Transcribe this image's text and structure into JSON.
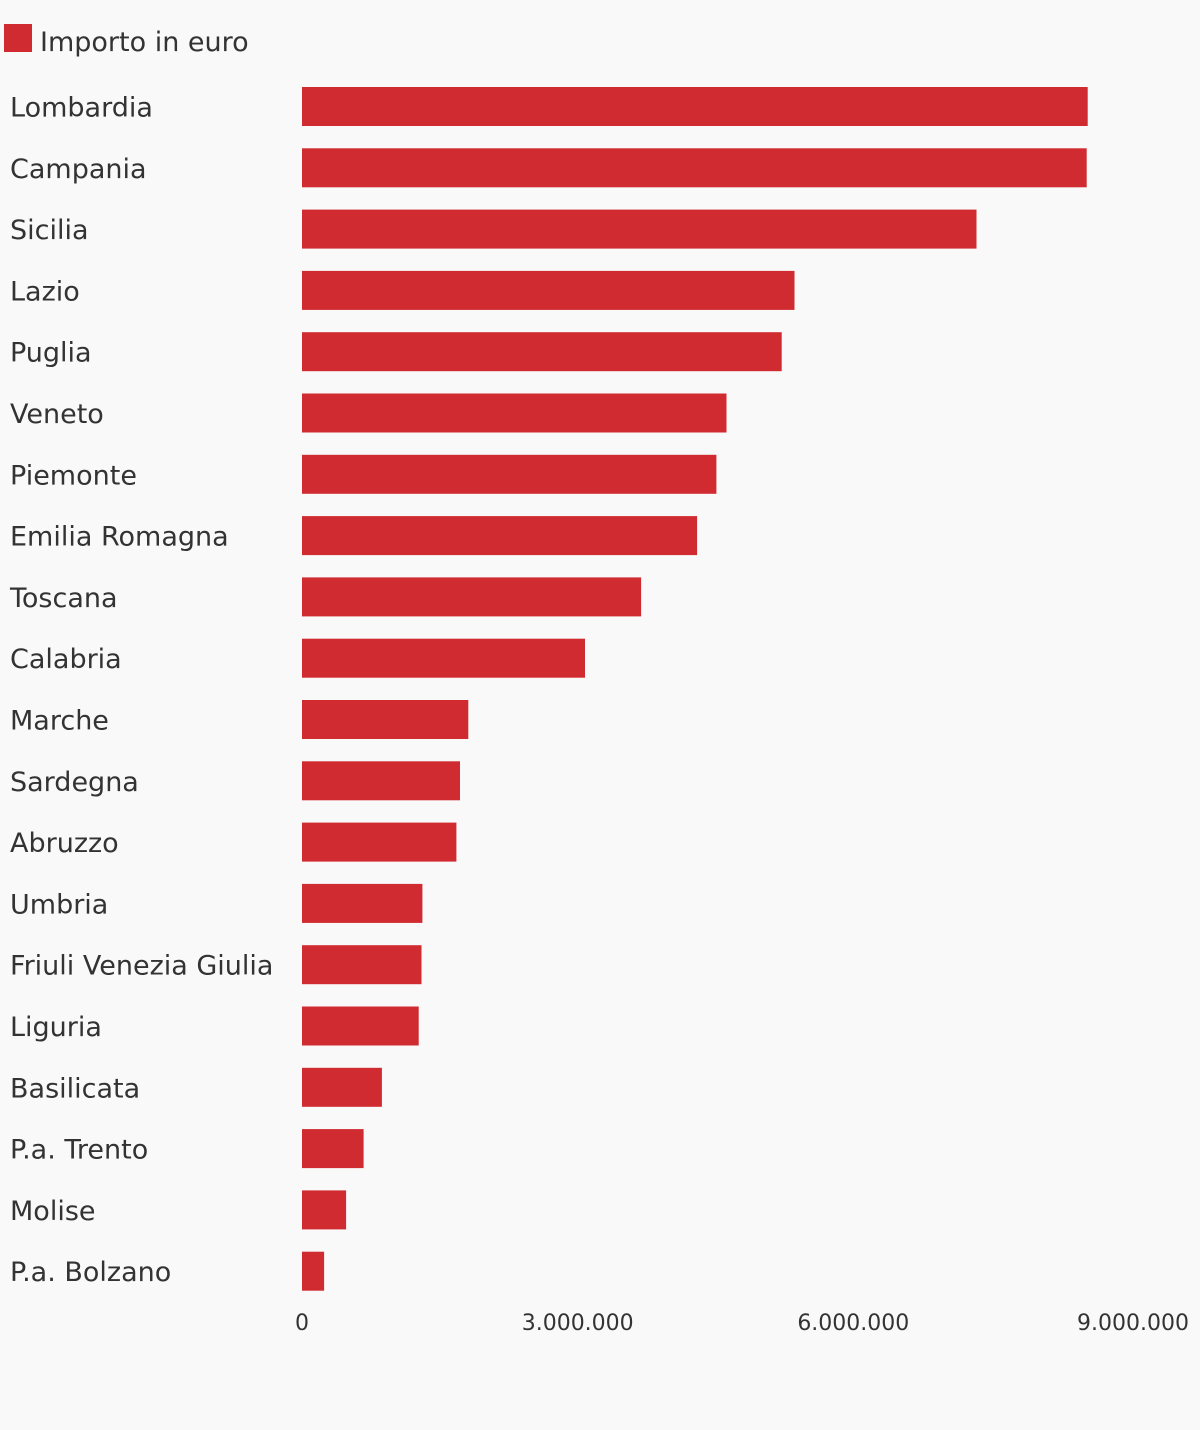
{
  "chart_data": {
    "type": "bar",
    "orientation": "horizontal",
    "title": "",
    "xlabel": "",
    "ylabel": "",
    "legend": {
      "position": "top-left",
      "entries": [
        "Importo in euro"
      ]
    },
    "series": [
      {
        "name": "Importo in euro",
        "color": "#cf2b31",
        "values": [
          8550000,
          8540000,
          7340000,
          5360000,
          5220000,
          4620000,
          4510000,
          4300000,
          3690000,
          3080000,
          1810000,
          1720000,
          1680000,
          1310000,
          1300000,
          1270000,
          870000,
          670000,
          480000,
          240000
        ]
      }
    ],
    "categories": [
      "Lombardia",
      "Campania",
      "Sicilia",
      "Lazio",
      "Puglia",
      "Veneto",
      "Piemonte",
      "Emilia Romagna",
      "Toscana",
      "Calabria",
      "Marche",
      "Sardegna",
      "Abruzzo",
      "Umbria",
      "Friuli Venezia Giulia",
      "Liguria",
      "Basilicata",
      "P.a. Trento",
      "Molise",
      "P.a. Bolzano"
    ],
    "xlim": [
      0,
      9000000
    ],
    "x_ticks": [
      0,
      3000000,
      6000000,
      9000000
    ],
    "x_tick_labels": [
      "0",
      "3.000.000",
      "6.000.000",
      "9.000.000"
    ],
    "grid": false
  }
}
